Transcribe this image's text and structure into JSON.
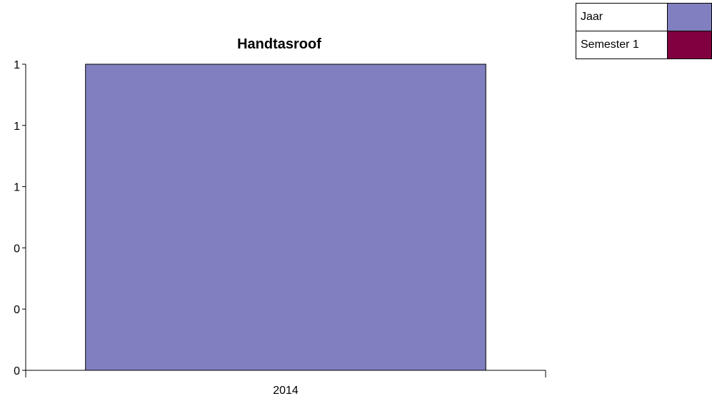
{
  "chart_data": {
    "type": "bar",
    "title": "Handtasroof",
    "categories": [
      "2014"
    ],
    "series": [
      {
        "name": "Jaar",
        "color": "#8080c0",
        "values": [
          1
        ]
      },
      {
        "name": "Semester 1",
        "color": "#800040",
        "values": [
          0
        ]
      }
    ],
    "ylim": [
      0,
      1
    ],
    "y_tick_labels": [
      "0",
      "0",
      "0",
      "1",
      "1",
      "1"
    ],
    "xlabel": "",
    "ylabel": "",
    "grid": false,
    "legend_position": "top-right"
  }
}
